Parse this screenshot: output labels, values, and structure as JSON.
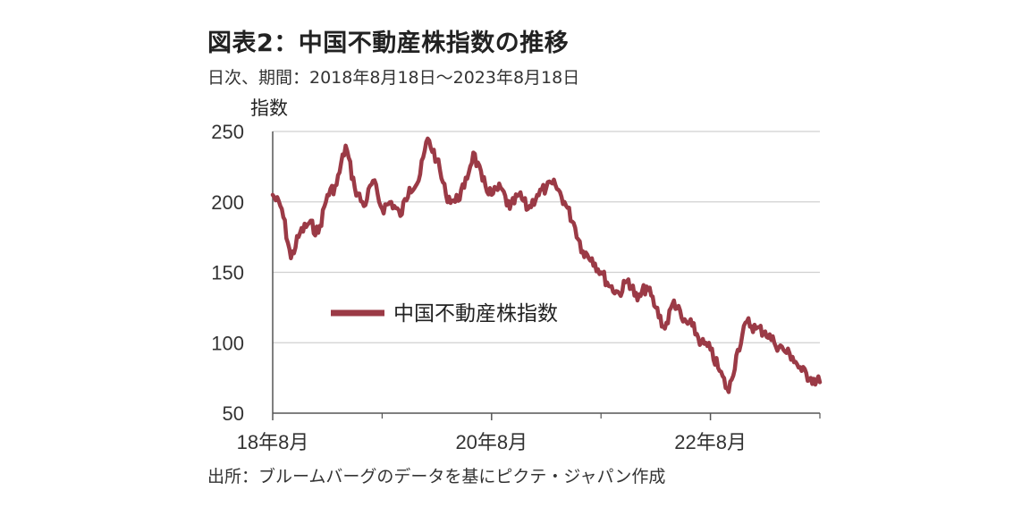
{
  "header": {
    "title": "図表2：中国不動産株指数の推移",
    "subtitle": "日次、期間：2018年8月18日～2023年8月18日"
  },
  "footer": {
    "source": "出所：ブルームバーグのデータを基にピクテ・ジャパン作成"
  },
  "chart_data": {
    "type": "line",
    "title": "図表2：中国不動産株指数の推移",
    "ylabel": "指数",
    "ylim": [
      50,
      250
    ],
    "yticks": [
      250,
      200,
      150,
      100,
      50
    ],
    "xtick_labels": [
      "18年8月",
      "20年8月",
      "22年8月"
    ],
    "xrange": [
      "2018-08",
      "2023-08"
    ],
    "grid": "horizontal",
    "legend_position": "center-left",
    "colors": {
      "series": "#9b3a46",
      "grid": "#d0d0d0",
      "axis": "#555555"
    },
    "series": [
      {
        "name": "中国不動産株指数",
        "x": [
          "2018-08",
          "2018-09",
          "2018-10",
          "2018-11",
          "2018-12",
          "2019-01",
          "2019-02",
          "2019-03",
          "2019-04",
          "2019-05",
          "2019-06",
          "2019-07",
          "2019-08",
          "2019-09",
          "2019-10",
          "2019-11",
          "2019-12",
          "2020-01",
          "2020-02",
          "2020-03",
          "2020-04",
          "2020-05",
          "2020-06",
          "2020-07",
          "2020-08",
          "2020-09",
          "2020-10",
          "2020-11",
          "2020-12",
          "2021-01",
          "2021-02",
          "2021-03",
          "2021-04",
          "2021-05",
          "2021-06",
          "2021-07",
          "2021-08",
          "2021-09",
          "2021-10",
          "2021-11",
          "2021-12",
          "2022-01",
          "2022-02",
          "2022-03",
          "2022-04",
          "2022-05",
          "2022-06",
          "2022-07",
          "2022-08",
          "2022-09",
          "2022-10",
          "2022-11",
          "2022-12",
          "2023-01",
          "2023-02",
          "2023-03",
          "2023-04",
          "2023-05",
          "2023-06",
          "2023-07",
          "2023-08"
        ],
        "values": [
          205,
          195,
          160,
          178,
          185,
          178,
          205,
          212,
          240,
          210,
          197,
          215,
          195,
          200,
          190,
          210,
          215,
          245,
          230,
          205,
          200,
          210,
          235,
          215,
          205,
          210,
          195,
          205,
          195,
          205,
          210,
          212,
          200,
          185,
          165,
          160,
          150,
          140,
          135,
          145,
          130,
          140,
          125,
          110,
          130,
          115,
          112,
          100,
          95,
          80,
          65,
          95,
          115,
          110,
          108,
          100,
          95,
          90,
          80,
          75,
          72
        ]
      }
    ]
  }
}
